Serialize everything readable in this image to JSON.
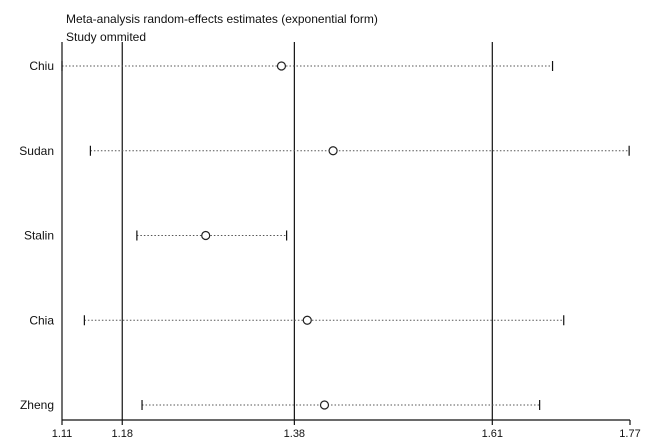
{
  "chart_data": {
    "type": "forest",
    "title": "Meta-analysis random-effects estimates (exponential form)",
    "subtitle": "Study ommited",
    "xlabel": "",
    "ylabel": "",
    "xlim": [
      1.11,
      1.77
    ],
    "x_ticks": [
      1.11,
      1.18,
      1.38,
      1.61,
      1.77
    ],
    "x_tick_labels": [
      "1.11",
      "1.18",
      "1.38",
      "1.61",
      "1.77"
    ],
    "reference_lines": [
      1.18,
      1.38,
      1.61
    ],
    "grid": false,
    "studies": [
      {
        "label": "Chiu",
        "estimate": 1.365,
        "lower": 1.11,
        "upper": 1.68
      },
      {
        "label": "Sudan",
        "estimate": 1.425,
        "lower": 1.143,
        "upper": 1.769
      },
      {
        "label": "Stalin",
        "estimate": 1.277,
        "lower": 1.197,
        "upper": 1.371
      },
      {
        "label": "Chia",
        "estimate": 1.395,
        "lower": 1.136,
        "upper": 1.693
      },
      {
        "label": "Zheng",
        "estimate": 1.415,
        "lower": 1.203,
        "upper": 1.665
      }
    ],
    "colors": {
      "axis": "#111111",
      "ci_line": "#555555",
      "marker_fill": "#ffffff",
      "marker_stroke": "#222222"
    }
  }
}
